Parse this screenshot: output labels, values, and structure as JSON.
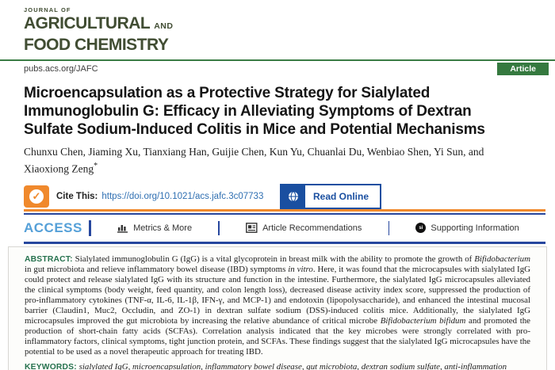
{
  "journal": {
    "kicker": "JOURNAL OF",
    "name_line1": "AGRICULTURAL",
    "name_line1_suffix": "AND",
    "name_line2": "FOOD CHEMISTRY",
    "url": "pubs.acs.org/JAFC",
    "badge": "Article"
  },
  "article": {
    "title": "Microencapsulation as a Protective Strategy for Sialylated Immunoglobulin G: Efficacy in Alleviating Symptoms of Dextran Sulfate Sodium-Induced Colitis in Mice and Potential Mechanisms",
    "authors": "Chunxu Chen, Jiaming Xu, Tianxiang Han, Guijie Chen, Kun Yu, Chuanlai Du, Wenbiao Shen, Yi Sun, and Xiaoxiong Zeng",
    "corresponding_mark": "*"
  },
  "cite": {
    "label": "Cite This:",
    "doi": "https://doi.org/10.1021/acs.jafc.3c07733",
    "read_online_label": "Read Online",
    "check_glyph": "✓"
  },
  "access_bar": {
    "access_label": "ACCESS",
    "items": [
      {
        "icon": "metrics-chart-icon",
        "label": "Metrics & More"
      },
      {
        "icon": "article-recommendations-icon",
        "label": "Article Recommendations"
      },
      {
        "icon": "supporting-information-icon",
        "icon_glyph": "si",
        "label": "Supporting Information"
      }
    ]
  },
  "abstract": {
    "label": "ABSTRACT:",
    "segments": [
      {
        "t": "Sialylated immunoglobulin G (IgG) is a vital glycoprotein in breast milk with the ability to promote the growth of "
      },
      {
        "t": "Bifidobacterium",
        "i": true
      },
      {
        "t": " in gut microbiota and relieve inflammatory bowel disease (IBD) symptoms "
      },
      {
        "t": "in vitro",
        "i": true
      },
      {
        "t": ". Here, it was found that the microcapsules with sialylated IgG could protect and release sialylated IgG with its structure and function in the intestine. Furthermore, the sialylated IgG microcapsules alleviated the clinical symptoms (body weight, feed quantity, and colon length loss), decreased disease activity index score, suppressed the production of pro-inflammatory cytokines (TNF-α, IL-6, IL-1β, IFN-γ, and MCP-1) and endotoxin (lipopolysaccharide), and enhanced the intestinal mucosal barrier (Claudin1, Muc2, Occludin, and ZO-1) in dextran sulfate sodium (DSS)-induced colitis mice. Additionally, the sialylated IgG microcapsules improved the gut microbiota by increasing the relative abundance of critical microbe "
      },
      {
        "t": "Bifidobacterium bifidum",
        "i": true
      },
      {
        "t": " and promoted the production of short-chain fatty acids (SCFAs). Correlation analysis indicated that the key microbes were strongly correlated with pro-inflammatory factors, clinical symptoms, tight junction protein, and SCFAs. These findings suggest that the sialylated IgG microcapsules have the potential to be used as a novel therapeutic approach for treating IBD."
      }
    ],
    "keywords_label": "KEYWORDS:",
    "keywords": "sialylated IgG, microencapsulation, inflammatory bowel disease, gut microbiota, dextran sodium sulfate, anti-inflammation"
  },
  "colors": {
    "logo_green": "#414d33",
    "acs_green": "#3a7c44",
    "navy_rule": "#27479e",
    "access_blue": "#55a0d8",
    "cite_orange": "#f0892c",
    "link_blue": "#2f6fb2",
    "read_online_blue": "#1a4fa0",
    "section_label_green": "#25714d"
  }
}
